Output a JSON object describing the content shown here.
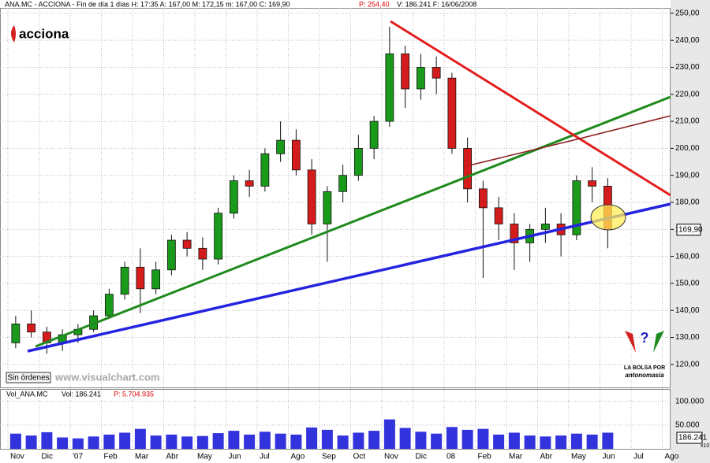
{
  "chart_data": {
    "type": "candlestick",
    "header": "ANA.MC - ACCIONA - Fin de día 1 días H: 17:35 A: 167,00 M: 172,15 m: 167,00 C: 169,90",
    "header_p": "P: 254,40",
    "header_end": "V: 186.241 F: 16/06/2008",
    "logo": "acciona",
    "status": "Sin órdenes",
    "website": "www.visualchart.com",
    "badge_line1": "LA BOLSA POR",
    "badge_line2": "antonomasia",
    "categories": [
      "Nov",
      null,
      "Dic",
      null,
      "'07",
      null,
      "Feb",
      null,
      "Mar",
      null,
      "Abr",
      null,
      "May",
      null,
      "Jun",
      null,
      "Jul",
      null,
      "Ago",
      null,
      "Sep",
      null,
      "Oct",
      null,
      "Nov",
      null,
      "Dic",
      null,
      "08",
      null,
      "Feb",
      null,
      "Mar",
      null,
      "Abr",
      null,
      "May",
      null,
      "Jun",
      null,
      "Jul",
      null,
      "Ago",
      null
    ],
    "open": [
      128,
      135,
      132,
      128,
      131,
      133,
      138,
      146,
      156,
      148,
      155,
      166,
      163,
      159,
      176,
      188,
      186,
      198,
      203,
      192,
      172,
      184,
      190,
      200,
      210,
      235,
      222,
      230,
      226,
      200,
      185,
      178,
      172,
      165,
      170,
      172,
      168,
      188,
      186,
      null,
      null,
      null,
      null,
      null
    ],
    "high": [
      138,
      140,
      134,
      133,
      135,
      140,
      148,
      158,
      163,
      158,
      168,
      169,
      167,
      178,
      190,
      192,
      200,
      210,
      207,
      196,
      186,
      194,
      205,
      212,
      245,
      238,
      235,
      234,
      228,
      204,
      188,
      182,
      176,
      172,
      178,
      176,
      190,
      193,
      189,
      null,
      null,
      null,
      null,
      null
    ],
    "low": [
      126,
      130,
      124,
      125,
      128,
      132,
      137,
      144,
      139,
      146,
      153,
      160,
      155,
      157,
      174,
      182,
      184,
      195,
      190,
      168,
      158,
      180,
      188,
      196,
      208,
      215,
      218,
      220,
      198,
      180,
      152,
      166,
      155,
      158,
      165,
      160,
      166,
      180,
      163,
      null,
      null,
      null,
      null,
      null
    ],
    "close": [
      135,
      132,
      128,
      131,
      133,
      138,
      146,
      156,
      148,
      155,
      166,
      163,
      159,
      176,
      188,
      186,
      198,
      203,
      192,
      172,
      184,
      190,
      200,
      210,
      235,
      222,
      230,
      226,
      200,
      185,
      178,
      172,
      165,
      170,
      172,
      168,
      188,
      186,
      169.9,
      null,
      null,
      null,
      null,
      null
    ],
    "up_color": "#1a9a1a",
    "down_color": "#d41c1c",
    "ylim": [
      111.5,
      252
    ],
    "yticks": [
      {
        "value": 120,
        "label": "120,00"
      },
      {
        "value": 130,
        "label": "130,00"
      },
      {
        "value": 140,
        "label": "140,00"
      },
      {
        "value": 150,
        "label": "150,00"
      },
      {
        "value": 160,
        "label": "160,00"
      },
      {
        "value": 170,
        "label": "170,00"
      },
      {
        "value": 180,
        "label": "180,00"
      },
      {
        "value": 190,
        "label": "190,00"
      },
      {
        "value": 200,
        "label": "200,00"
      },
      {
        "value": 210,
        "label": "210,00"
      },
      {
        "value": 220,
        "label": "220,00"
      },
      {
        "value": 230,
        "label": "230,00"
      },
      {
        "value": 240,
        "label": "240,00"
      },
      {
        "value": 250,
        "label": "250,00"
      }
    ],
    "last_price": {
      "value": 169.9,
      "label": "169,90"
    },
    "grid": true,
    "volume": {
      "title": "Vol_ANA.MC",
      "vol_text": "Vol: 186.241",
      "p_text": "P: 5.704.935",
      "color": "#3333dd",
      "values": [
        32000,
        28000,
        35000,
        24000,
        22000,
        26000,
        30000,
        34000,
        42000,
        28000,
        30000,
        26000,
        27000,
        33000,
        38000,
        30000,
        36000,
        32000,
        30000,
        45000,
        40000,
        28000,
        34000,
        38000,
        62000,
        44000,
        36000,
        32000,
        46000,
        40000,
        42000,
        30000,
        34000,
        28000,
        26000,
        28000,
        32000,
        30000,
        34000,
        null,
        null,
        null,
        null,
        null
      ],
      "ylim": [
        0,
        126000
      ],
      "yticks": [
        {
          "value": 100000,
          "label": "100.000"
        },
        {
          "value": 50000,
          "label": "50.000"
        }
      ],
      "last": {
        "value": 186241,
        "label": "186.241"
      },
      "scale_label": "x10"
    }
  }
}
